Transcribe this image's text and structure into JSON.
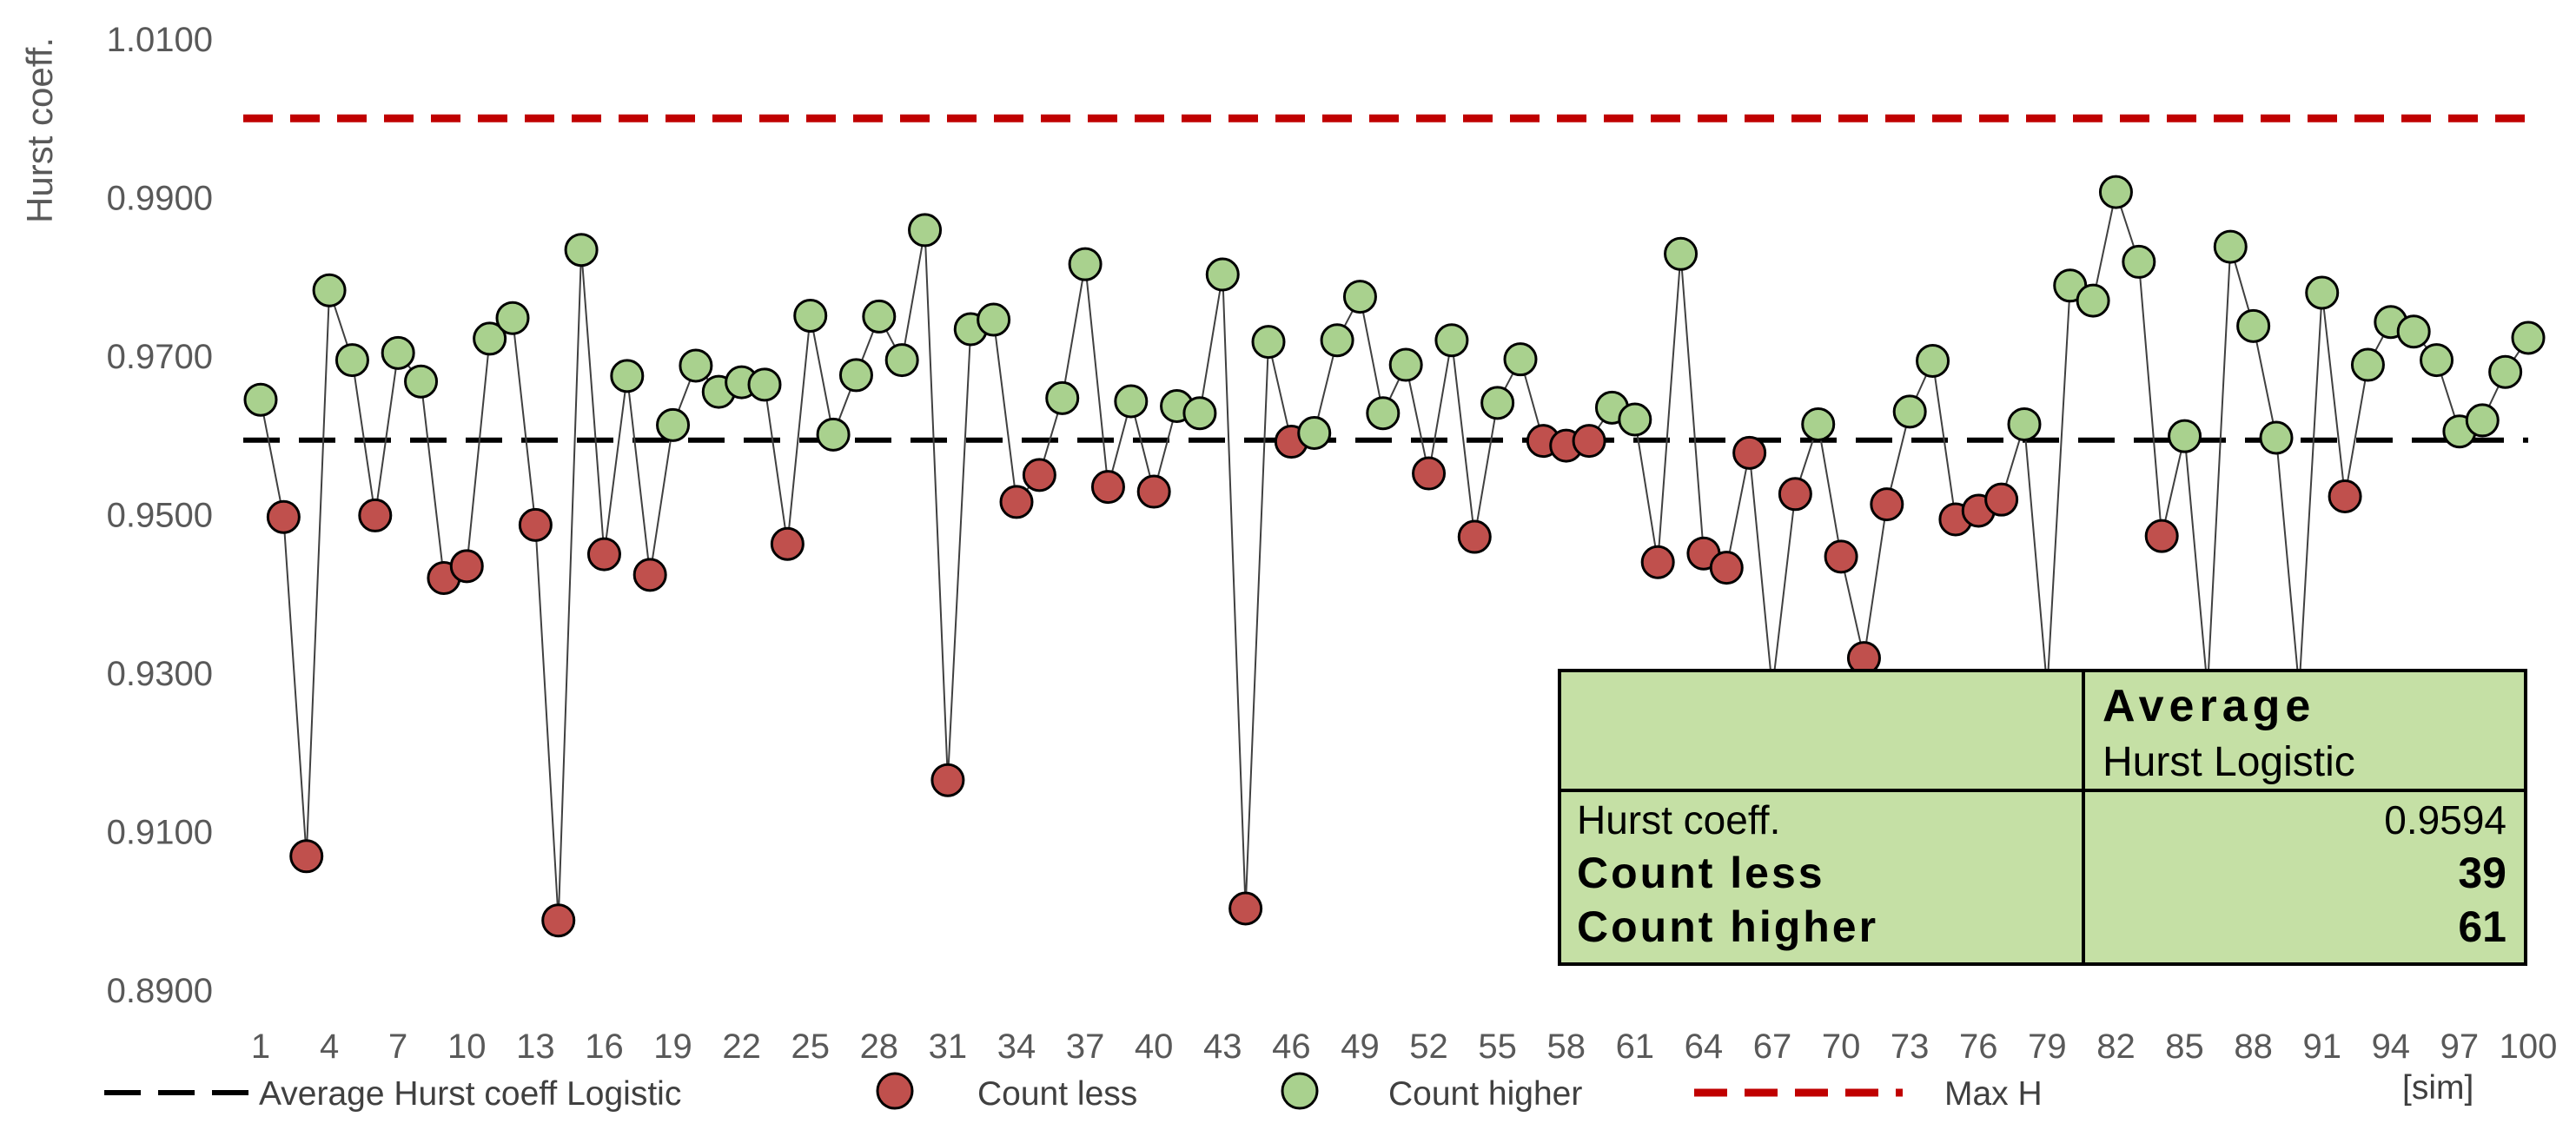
{
  "chart_data": {
    "type": "line",
    "ylabel": "Hurst coeff.",
    "xlabel": "[sim]",
    "ylim": [
      0.89,
      1.01
    ],
    "yticks": [
      "0.8900",
      "0.9100",
      "0.9300",
      "0.9500",
      "0.9700",
      "0.9900",
      "1.0100"
    ],
    "xtick_labels": [
      "1",
      "4",
      "7",
      "10",
      "13",
      "16",
      "19",
      "22",
      "25",
      "28",
      "31",
      "34",
      "37",
      "40",
      "43",
      "46",
      "49",
      "52",
      "55",
      "58",
      "61",
      "64",
      "67",
      "70",
      "73",
      "76",
      "79",
      "82",
      "85",
      "88",
      "91",
      "94",
      "97",
      "100"
    ],
    "average": 0.9594,
    "max_h": 1.0,
    "grid": false,
    "legend_position": "bottom",
    "series": [
      {
        "name": "Hurst coeff.",
        "x": [
          1,
          2,
          3,
          4,
          5,
          6,
          7,
          8,
          9,
          10,
          11,
          12,
          13,
          14,
          15,
          16,
          17,
          18,
          19,
          20,
          21,
          22,
          23,
          24,
          25,
          26,
          27,
          28,
          29,
          30,
          31,
          32,
          33,
          34,
          35,
          36,
          37,
          38,
          39,
          40,
          41,
          42,
          43,
          44,
          45,
          46,
          47,
          48,
          49,
          50,
          51,
          52,
          53,
          54,
          55,
          56,
          57,
          58,
          59,
          60,
          61,
          62,
          63,
          64,
          65,
          66,
          67,
          68,
          69,
          70,
          71,
          72,
          73,
          74,
          75,
          76,
          77,
          78,
          79,
          80,
          81,
          82,
          83,
          84,
          85,
          86,
          87,
          88,
          89,
          90,
          91,
          92,
          93,
          94,
          95,
          96,
          97,
          98,
          99,
          100
        ],
        "values": [
          0.9645,
          0.9497,
          0.9069,
          0.9783,
          0.9695,
          0.9499,
          0.9704,
          0.9668,
          0.942,
          0.9435,
          0.9722,
          0.9748,
          0.9487,
          0.8988,
          0.9834,
          0.945,
          0.9675,
          0.9424,
          0.9613,
          0.9688,
          0.9655,
          0.9667,
          0.9664,
          0.9463,
          0.9751,
          0.9601,
          0.9676,
          0.975,
          0.9695,
          0.9859,
          0.9165,
          0.9734,
          0.9746,
          0.9516,
          0.955,
          0.9647,
          0.9816,
          0.9535,
          0.9643,
          0.9529,
          0.9637,
          0.9628,
          0.9803,
          0.9003,
          0.9718,
          0.9592,
          0.9603,
          0.972,
          0.9775,
          0.9628,
          0.9689,
          0.9552,
          0.972,
          0.9472,
          0.9641,
          0.9696,
          0.9593,
          0.9587,
          0.9593,
          0.9635,
          0.962,
          0.944,
          0.9829,
          0.9451,
          0.9433,
          0.9578,
          0.928,
          0.9526,
          0.9614,
          0.9447,
          0.9319,
          0.9513,
          0.963,
          0.9694,
          0.9494,
          0.9505,
          0.9519,
          0.9614,
          0.928,
          0.9789,
          0.977,
          0.9907,
          0.9819,
          0.9473,
          0.9599,
          0.928,
          0.9838,
          0.9738,
          0.9597,
          0.928,
          0.978,
          0.9523,
          0.9689,
          0.9743,
          0.9731,
          0.9695,
          0.9605,
          0.9619,
          0.968,
          0.9723
        ]
      }
    ]
  },
  "legend": {
    "average": "Average Hurst coeff Logistic",
    "less": "Count less",
    "higher": "Count higher",
    "max": "Max H"
  },
  "colors": {
    "higher_fill": "#a9d18e",
    "less_fill": "#c0504d",
    "max_line": "#c00000",
    "avg_line": "#000000",
    "table_bg": "#c5e0a5"
  },
  "table": {
    "header_line1": "Average",
    "header_line2": "Hurst Logistic",
    "rows": [
      {
        "label": "Hurst coeff.",
        "value": "0.9594"
      },
      {
        "label": "Count less",
        "value": "39"
      },
      {
        "label": "Count higher",
        "value": "61"
      }
    ]
  }
}
